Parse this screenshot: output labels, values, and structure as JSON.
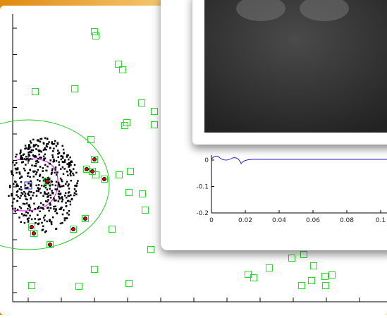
{
  "inset_plot": {
    "yticks": [
      "0",
      "-0.1",
      "-0.2"
    ],
    "xticks": [
      "0",
      "0.02",
      "0.04",
      "0.06",
      "0.08",
      "0.1"
    ]
  }
}
